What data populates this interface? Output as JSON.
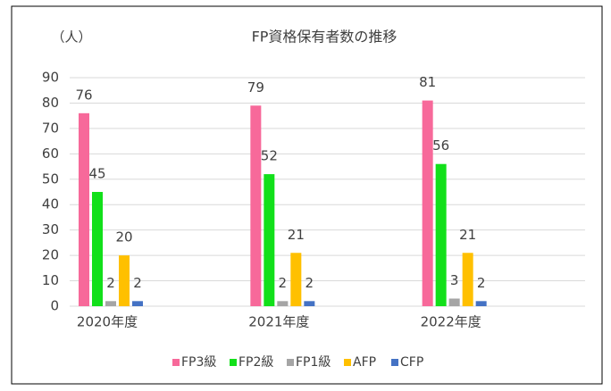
{
  "chart_data": {
    "type": "bar",
    "title": "FP資格保有者数の推移",
    "y_label": "（人）",
    "categories": [
      "2020年度",
      "2021年度",
      "2022年度"
    ],
    "series": [
      {
        "name": "FP3級",
        "color": "#f7699a",
        "values": [
          76,
          79,
          81
        ]
      },
      {
        "name": "FP2級",
        "color": "#12e01a",
        "values": [
          45,
          52,
          56
        ]
      },
      {
        "name": "FP1級",
        "color": "#a5a5a5",
        "values": [
          2,
          2,
          3
        ]
      },
      {
        "name": "AFP",
        "color": "#ffc000",
        "values": [
          20,
          21,
          21
        ]
      },
      {
        "name": "CFP",
        "color": "#4472c4",
        "values": [
          2,
          2,
          2
        ]
      }
    ],
    "ylim": [
      0,
      90
    ],
    "yticks": [
      0,
      10,
      20,
      30,
      40,
      50,
      60,
      70,
      80,
      90
    ],
    "grid": true,
    "legend": "bottom"
  }
}
